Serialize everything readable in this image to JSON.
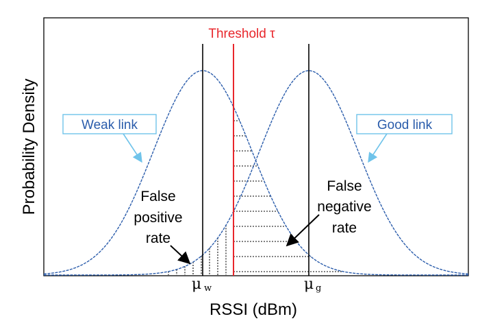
{
  "chart_data": {
    "type": "diagram",
    "title": "",
    "xlabel": "RSSI (dBm)",
    "ylabel": "Probability Density",
    "threshold_label": "Threshold τ",
    "series": [
      {
        "name": "Weak link",
        "mean_label": "μ",
        "mean_sub": "w"
      },
      {
        "name": "Good link",
        "mean_label": "μ",
        "mean_sub": "g"
      }
    ],
    "annotations": {
      "false_positive": [
        "False",
        "positive",
        "rate"
      ],
      "false_negative": [
        "False",
        "negative",
        "rate"
      ]
    },
    "colors": {
      "curve": "#2a5cab",
      "threshold": "#e8262b",
      "callout_border": "#6fc3ea",
      "lines": "#000000"
    }
  }
}
